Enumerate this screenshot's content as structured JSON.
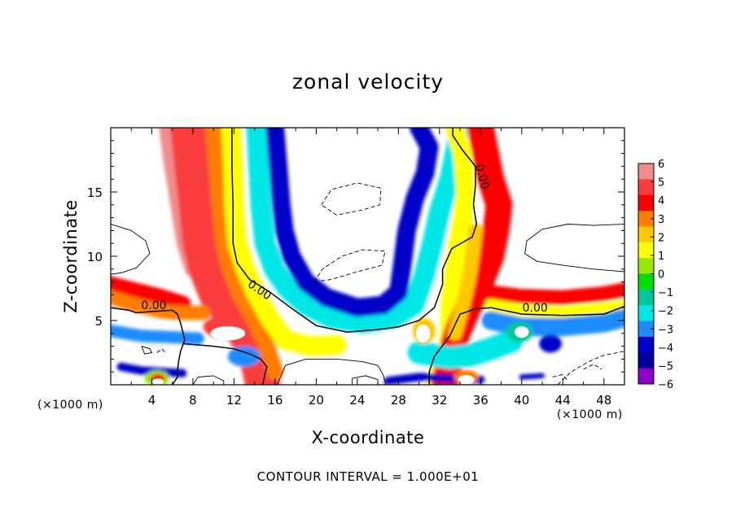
{
  "chart_data": {
    "type": "heatmap",
    "title": "zonal velocity",
    "xlabel": "X-coordinate",
    "ylabel": "Z-coordinate",
    "x_unit_label": "(×1000 m)",
    "footer": "CONTOUR INTERVAL = 1.000E+01",
    "xlim": [
      0,
      50
    ],
    "ylim": [
      0,
      20
    ],
    "x_ticks": [
      "4",
      "8",
      "12",
      "16",
      "20",
      "24",
      "28",
      "32",
      "36",
      "40",
      "44",
      "48"
    ],
    "y_ticks": [
      "5",
      "10",
      "15"
    ],
    "colorbar": {
      "labels": [
        "6",
        "5",
        "4",
        "3",
        "2",
        "1",
        "0",
        "−1",
        "−2",
        "−3",
        "−4",
        "−5",
        "−6"
      ],
      "colors": [
        "#f08c8c",
        "#fa3c3c",
        "#fa0000",
        "#ff7d00",
        "#ffc800",
        "#ffff00",
        "#9be600",
        "#00dc00",
        "#00c896",
        "#00e6e6",
        "#1e8cff",
        "#0000c8",
        "#0000a0",
        "#8c00c8"
      ]
    },
    "contour_labels": [
      "0.00",
      "0.00",
      "0.00",
      "0.00"
    ],
    "bands": [
      {
        "value": 6,
        "center": [
          [
            5.5,
            20
          ],
          [
            6,
            17
          ],
          [
            6.6,
            14
          ],
          [
            7.2,
            11
          ],
          [
            8,
            9
          ]
        ],
        "width": 1.6
      },
      {
        "value": 5,
        "center": [
          [
            7.5,
            20
          ],
          [
            7.9,
            17
          ],
          [
            8.3,
            14
          ],
          [
            8.7,
            11
          ],
          [
            9.3,
            9
          ],
          [
            10.3,
            7
          ],
          [
            11.8,
            5.5
          ],
          [
            13.5,
            3.5
          ],
          [
            14.4,
            1.5
          ],
          [
            14.8,
            0
          ]
        ],
        "width": 3.4
      },
      {
        "value": 3.5,
        "center": [
          [
            10,
            20
          ],
          [
            10.3,
            17
          ],
          [
            10.6,
            14
          ],
          [
            11,
            11
          ],
          [
            11.6,
            9
          ],
          [
            12.6,
            7
          ],
          [
            14,
            5
          ],
          [
            15.2,
            3
          ],
          [
            16,
            1
          ]
        ],
        "width": 1.6
      },
      {
        "value": 1.5,
        "center": [
          [
            11.7,
            20
          ],
          [
            11.9,
            17
          ],
          [
            12,
            14
          ],
          [
            12.3,
            11
          ],
          [
            13.1,
            9
          ],
          [
            14.2,
            7
          ],
          [
            15.6,
            5
          ],
          [
            17,
            3.5
          ],
          [
            19.5,
            3
          ],
          [
            22,
            3.1
          ]
        ],
        "width": 1.9
      },
      {
        "value": -2.5,
        "center": [
          [
            14.2,
            20
          ],
          [
            14.4,
            17
          ],
          [
            14.6,
            14
          ],
          [
            15,
            11
          ],
          [
            15.9,
            9
          ],
          [
            17.2,
            7.5
          ],
          [
            19,
            6.2
          ],
          [
            21.5,
            5.2
          ],
          [
            24.5,
            4.8
          ],
          [
            27.5,
            5.2
          ],
          [
            29.5,
            6.2
          ],
          [
            30.5,
            8.5
          ],
          [
            31.3,
            11
          ],
          [
            32,
            13.5
          ],
          [
            33,
            16
          ],
          [
            33.6,
            18.3
          ],
          [
            34,
            20
          ]
        ],
        "width": 2.0
      },
      {
        "value": -4.5,
        "center": [
          [
            16,
            20
          ],
          [
            16.3,
            17
          ],
          [
            16.6,
            14
          ],
          [
            16.9,
            12
          ],
          [
            17.6,
            10
          ],
          [
            19,
            8
          ],
          [
            21,
            6.8
          ],
          [
            24,
            6
          ],
          [
            26.5,
            6.2
          ],
          [
            28,
            7.2
          ],
          [
            28.4,
            9.5
          ],
          [
            28.8,
            12
          ],
          [
            29.6,
            14.5
          ],
          [
            30.6,
            16.5
          ],
          [
            31,
            18.5
          ],
          [
            30,
            20
          ]
        ],
        "width": 1.8
      },
      {
        "value": 0.7,
        "center": [
          [
            33.5,
            20
          ],
          [
            34.2,
            18
          ],
          [
            34.5,
            15
          ],
          [
            34.3,
            13
          ],
          [
            33.8,
            11
          ],
          [
            33.3,
            8
          ],
          [
            33,
            6
          ],
          [
            33,
            4
          ],
          [
            32.5,
            2
          ],
          [
            31.5,
            0
          ]
        ],
        "width": 1.8
      },
      {
        "value": 4.5,
        "center": [
          [
            36,
            20
          ],
          [
            36.5,
            18
          ],
          [
            37,
            16
          ],
          [
            37.8,
            14
          ],
          [
            37.5,
            12
          ],
          [
            37,
            10
          ],
          [
            36,
            8
          ],
          [
            34.8,
            6
          ],
          [
            33.7,
            4
          ],
          [
            33,
            2
          ],
          [
            32.5,
            0
          ]
        ],
        "width": 2.6
      },
      {
        "value": 2.5,
        "center": [
          [
            35.5,
            12
          ],
          [
            35.2,
            10
          ],
          [
            34.8,
            8
          ],
          [
            34.2,
            6
          ],
          [
            33.5,
            4
          ]
        ],
        "width": 1.4
      },
      {
        "value": 4.5,
        "center": [
          [
            0,
            7.8
          ],
          [
            2.5,
            7.3
          ],
          [
            5,
            6.8
          ],
          [
            7,
            6.3
          ]
        ],
        "width": 1.6
      },
      {
        "value": 3.5,
        "center": [
          [
            0,
            6.8
          ],
          [
            2.5,
            6.2
          ],
          [
            5,
            5.7
          ],
          [
            7,
            5.6
          ],
          [
            9,
            5.6
          ]
        ],
        "width": 1.4
      },
      {
        "value": -3.5,
        "center": [
          [
            0,
            4.2
          ],
          [
            3,
            3.8
          ],
          [
            6,
            3.7
          ],
          [
            8.5,
            3.6
          ]
        ],
        "width": 1.2
      },
      {
        "value": 4.5,
        "center": [
          [
            36,
            7.3
          ],
          [
            40,
            6.9
          ],
          [
            44,
            6.8
          ],
          [
            48,
            7.1
          ],
          [
            50,
            7.4
          ]
        ],
        "width": 1.4
      },
      {
        "value": 1,
        "center": [
          [
            37,
            6.2
          ],
          [
            40,
            5.8
          ],
          [
            44,
            5.6
          ],
          [
            48,
            5.9
          ],
          [
            50,
            6.1
          ]
        ],
        "width": 1.2
      },
      {
        "value": -4,
        "center": [
          [
            37,
            5
          ],
          [
            40,
            4.5
          ],
          [
            44,
            4.5
          ],
          [
            48,
            4.8
          ],
          [
            50,
            5.2
          ]
        ],
        "width": 1.8
      },
      {
        "value": -3,
        "center": [
          [
            30,
            2.5
          ],
          [
            33,
            2.1
          ],
          [
            35,
            2.3
          ],
          [
            37,
            2.8
          ],
          [
            39,
            3.4
          ]
        ],
        "width": 2.2
      },
      {
        "value": -5,
        "center": [
          [
            1,
            1.4
          ],
          [
            3,
            1.1
          ],
          [
            5,
            1.0
          ],
          [
            7,
            0.9
          ]
        ],
        "width": 0.8
      },
      {
        "value": -5,
        "center": [
          [
            27,
            0.3
          ],
          [
            30,
            0.6
          ],
          [
            33,
            0.5
          ],
          [
            36,
            0.4
          ]
        ],
        "width": 0.8
      },
      {
        "value": -5,
        "center": [
          [
            40,
            0.6
          ],
          [
            42,
            0.7
          ]
        ],
        "width": 0.5
      }
    ],
    "blobs": [
      {
        "value": 0,
        "x": 4.5,
        "y": 0.5,
        "rx": 1.2,
        "ry": 0.6
      },
      {
        "value": 4.5,
        "x": 4.6,
        "y": 0.5,
        "rx": 0.7,
        "ry": 0.35
      },
      {
        "value": 5,
        "x": 11.2,
        "y": 4.5,
        "rx": 2.2,
        "ry": 0.9
      },
      {
        "value": -3.5,
        "x": 13,
        "y": 2.2,
        "rx": 1.6,
        "ry": 0.8
      },
      {
        "value": 2.5,
        "x": 30.5,
        "y": 4.2,
        "rx": 1.1,
        "ry": 1.0
      },
      {
        "value": -2,
        "x": 39.8,
        "y": 4.1,
        "rx": 1.3,
        "ry": 0.8
      },
      {
        "value": -5,
        "x": 42.8,
        "y": 3.2,
        "rx": 1.1,
        "ry": 0.7
      },
      {
        "value": 3,
        "x": 34.6,
        "y": 0.6,
        "rx": 1.2,
        "ry": 0.55
      }
    ],
    "holes": [
      {
        "x": 11.4,
        "y": 4.0,
        "rx": 1.7,
        "ry": 0.55
      },
      {
        "x": 30.4,
        "y": 4.0,
        "rx": 0.7,
        "ry": 0.7
      },
      {
        "x": 40,
        "y": 4.1,
        "rx": 0.7,
        "ry": 0.45
      },
      {
        "x": 34.6,
        "y": 0.4,
        "rx": 0.8,
        "ry": 0.35
      },
      {
        "x": 4.6,
        "y": 0.25,
        "rx": 0.55,
        "ry": 0.25
      }
    ],
    "zero_contours": [
      [
        [
          11.8,
          20
        ],
        [
          11.8,
          17
        ],
        [
          11.9,
          14
        ],
        [
          11.9,
          11
        ],
        [
          12.3,
          9.5
        ],
        [
          13.5,
          8.2
        ],
        [
          15.5,
          7.2
        ],
        [
          17.5,
          6
        ],
        [
          20,
          4.6
        ],
        [
          23,
          4.1
        ],
        [
          26,
          4.3
        ],
        [
          28,
          4.5
        ],
        [
          30,
          5
        ],
        [
          31.5,
          6
        ],
        [
          32.3,
          7.8
        ],
        [
          32.3,
          9
        ],
        [
          33.2,
          10.6
        ],
        [
          35.2,
          11.5
        ],
        [
          35.6,
          12.5
        ],
        [
          35.3,
          14
        ],
        [
          35.5,
          15.5
        ],
        [
          35.5,
          17
        ],
        [
          34.2,
          18.3
        ],
        [
          33.3,
          19.4
        ],
        [
          33.3,
          20
        ]
      ],
      [
        [
          0,
          6
        ],
        [
          1.8,
          5.8
        ],
        [
          2.5,
          5.6
        ],
        [
          4,
          5.7
        ],
        [
          6,
          5.8
        ],
        [
          6.5,
          5.5
        ],
        [
          6.8,
          4.8
        ],
        [
          7.2,
          3.5
        ],
        [
          6.8,
          2.6
        ],
        [
          6.6,
          1.8
        ],
        [
          6.5,
          1.1
        ],
        [
          6.5,
          0.6
        ],
        [
          6,
          0
        ]
      ],
      [
        [
          31,
          0
        ],
        [
          31,
          1
        ],
        [
          31.5,
          2.2
        ],
        [
          33,
          3.8
        ],
        [
          34,
          5.5
        ],
        [
          35.5,
          5.9
        ],
        [
          37,
          6
        ],
        [
          40,
          5.5
        ],
        [
          44,
          5.4
        ],
        [
          48,
          5.5
        ],
        [
          50,
          6.1
        ]
      ],
      [
        [
          7,
          3.2
        ],
        [
          10,
          3.0
        ],
        [
          12,
          2.8
        ],
        [
          13.5,
          2.4
        ],
        [
          14.6,
          2
        ],
        [
          15.2,
          1.4
        ],
        [
          15,
          0.8
        ],
        [
          14.8,
          0
        ]
      ]
    ],
    "solid_contours": [
      [
        [
          0,
          12.5
        ],
        [
          2,
          12
        ],
        [
          3.4,
          11.2
        ],
        [
          3.8,
          10.2
        ],
        [
          2.5,
          9.1
        ],
        [
          1,
          8.7
        ],
        [
          0,
          8.6
        ]
      ],
      [
        [
          50,
          12.5
        ],
        [
          47,
          12.4
        ],
        [
          44.5,
          12.5
        ],
        [
          42,
          12.1
        ],
        [
          40.5,
          11.2
        ],
        [
          40.3,
          10.2
        ],
        [
          41.5,
          9.6
        ],
        [
          44,
          9.3
        ],
        [
          47,
          9.0
        ],
        [
          50,
          8.8
        ]
      ],
      [
        [
          16.2,
          0
        ],
        [
          17,
          1.5
        ],
        [
          19,
          2
        ],
        [
          22,
          2
        ],
        [
          24.5,
          1.8
        ],
        [
          26,
          1.5
        ],
        [
          26.5,
          0.8
        ],
        [
          26.8,
          0
        ]
      ],
      [
        [
          23.5,
          0
        ],
        [
          23.5,
          0.5
        ],
        [
          24.8,
          0.7
        ],
        [
          26,
          0.4
        ],
        [
          26,
          0
        ]
      ],
      [
        [
          8,
          0
        ],
        [
          8.5,
          0.6
        ],
        [
          10,
          0.7
        ],
        [
          11,
          0.3
        ],
        [
          11,
          0
        ]
      ],
      [
        [
          3,
          3
        ],
        [
          3.8,
          2.8
        ],
        [
          4,
          2.5
        ],
        [
          3.3,
          2.4
        ],
        [
          3,
          3
        ]
      ]
    ],
    "dashed_contours": [
      [
        [
          20.5,
          14
        ],
        [
          21.5,
          15.2
        ],
        [
          24,
          15.7
        ],
        [
          26.3,
          15.3
        ],
        [
          26.2,
          14
        ],
        [
          24.5,
          13.6
        ],
        [
          22,
          13.2
        ],
        [
          20.5,
          14
        ]
      ],
      [
        [
          19.8,
          8
        ],
        [
          20.6,
          9
        ],
        [
          22.5,
          10
        ],
        [
          24.5,
          10.5
        ],
        [
          26.7,
          10.4
        ],
        [
          26.4,
          9.3
        ],
        [
          24,
          8.8
        ],
        [
          21.5,
          8.2
        ],
        [
          19.8,
          8
        ]
      ],
      [
        [
          43.5,
          0
        ],
        [
          44.8,
          1
        ],
        [
          46.5,
          1.8
        ],
        [
          48,
          2.3
        ],
        [
          50,
          2.6
        ]
      ],
      [
        [
          43,
          0.6
        ],
        [
          44,
          0.8
        ],
        [
          44.5,
          0.3
        ]
      ],
      [
        [
          46,
          1.2
        ],
        [
          47,
          1.6
        ],
        [
          47.8,
          1.2
        ]
      ],
      [
        [
          4.5,
          2.5
        ],
        [
          5,
          2.8
        ],
        [
          5.3,
          2.5
        ]
      ]
    ]
  }
}
